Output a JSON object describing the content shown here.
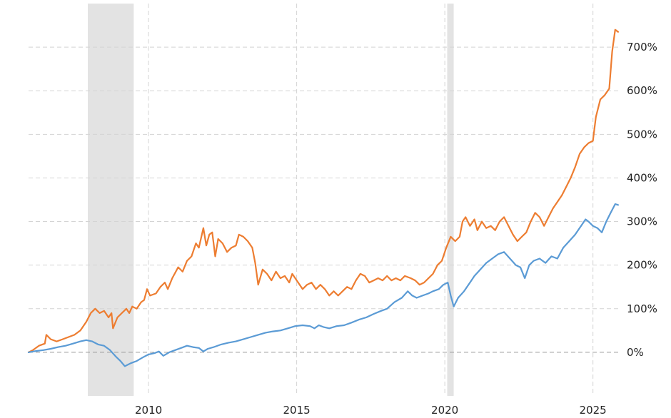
{
  "chart_data": {
    "type": "line",
    "x_unit": "year",
    "xlim": [
      2005.95,
      2025.9
    ],
    "ylim": [
      -100,
      800
    ],
    "x_ticks": [
      {
        "value": 2010,
        "label": "2010"
      },
      {
        "value": 2015,
        "label": "2015"
      },
      {
        "value": 2020,
        "label": "2020"
      },
      {
        "value": 2025,
        "label": "2025"
      }
    ],
    "y_ticks": [
      {
        "value": 0,
        "label": "0%"
      },
      {
        "value": 100,
        "label": "100%"
      },
      {
        "value": 200,
        "label": "200%"
      },
      {
        "value": 300,
        "label": "300%"
      },
      {
        "value": 400,
        "label": "400%"
      },
      {
        "value": 500,
        "label": "500%"
      },
      {
        "value": 600,
        "label": "600%"
      },
      {
        "value": 700,
        "label": "700%"
      }
    ],
    "grid": true,
    "shaded_periods": [
      {
        "start": 2007.95,
        "end": 2009.5
      },
      {
        "start": 2020.08,
        "end": 2020.3
      }
    ],
    "series": [
      {
        "color": "#ed7d31",
        "points": [
          [
            2005.95,
            0
          ],
          [
            2006.1,
            5
          ],
          [
            2006.3,
            15
          ],
          [
            2006.5,
            20
          ],
          [
            2006.55,
            40
          ],
          [
            2006.7,
            30
          ],
          [
            2006.9,
            25
          ],
          [
            2007.1,
            30
          ],
          [
            2007.3,
            35
          ],
          [
            2007.5,
            40
          ],
          [
            2007.7,
            50
          ],
          [
            2007.9,
            70
          ],
          [
            2008.05,
            90
          ],
          [
            2008.2,
            100
          ],
          [
            2008.35,
            90
          ],
          [
            2008.5,
            95
          ],
          [
            2008.65,
            80
          ],
          [
            2008.75,
            90
          ],
          [
            2008.8,
            55
          ],
          [
            2008.95,
            80
          ],
          [
            2009.1,
            90
          ],
          [
            2009.25,
            100
          ],
          [
            2009.35,
            90
          ],
          [
            2009.45,
            105
          ],
          [
            2009.6,
            100
          ],
          [
            2009.75,
            115
          ],
          [
            2009.85,
            120
          ],
          [
            2009.95,
            145
          ],
          [
            2010.05,
            130
          ],
          [
            2010.25,
            135
          ],
          [
            2010.4,
            150
          ],
          [
            2010.55,
            160
          ],
          [
            2010.65,
            145
          ],
          [
            2010.8,
            170
          ],
          [
            2011.0,
            195
          ],
          [
            2011.15,
            185
          ],
          [
            2011.3,
            210
          ],
          [
            2011.45,
            220
          ],
          [
            2011.6,
            250
          ],
          [
            2011.7,
            240
          ],
          [
            2011.85,
            285
          ],
          [
            2011.95,
            245
          ],
          [
            2012.05,
            270
          ],
          [
            2012.15,
            275
          ],
          [
            2012.25,
            220
          ],
          [
            2012.35,
            260
          ],
          [
            2012.5,
            250
          ],
          [
            2012.65,
            230
          ],
          [
            2012.8,
            240
          ],
          [
            2012.95,
            245
          ],
          [
            2013.05,
            270
          ],
          [
            2013.2,
            265
          ],
          [
            2013.35,
            255
          ],
          [
            2013.5,
            240
          ],
          [
            2013.6,
            205
          ],
          [
            2013.7,
            155
          ],
          [
            2013.85,
            190
          ],
          [
            2014.0,
            180
          ],
          [
            2014.15,
            165
          ],
          [
            2014.3,
            185
          ],
          [
            2014.45,
            170
          ],
          [
            2014.6,
            175
          ],
          [
            2014.75,
            160
          ],
          [
            2014.85,
            180
          ],
          [
            2015.05,
            160
          ],
          [
            2015.2,
            145
          ],
          [
            2015.35,
            155
          ],
          [
            2015.5,
            160
          ],
          [
            2015.65,
            145
          ],
          [
            2015.8,
            155
          ],
          [
            2015.95,
            145
          ],
          [
            2016.1,
            130
          ],
          [
            2016.25,
            140
          ],
          [
            2016.4,
            130
          ],
          [
            2016.55,
            140
          ],
          [
            2016.7,
            150
          ],
          [
            2016.85,
            145
          ],
          [
            2017.0,
            165
          ],
          [
            2017.15,
            180
          ],
          [
            2017.3,
            175
          ],
          [
            2017.45,
            160
          ],
          [
            2017.6,
            165
          ],
          [
            2017.75,
            170
          ],
          [
            2017.9,
            165
          ],
          [
            2018.05,
            175
          ],
          [
            2018.2,
            165
          ],
          [
            2018.35,
            170
          ],
          [
            2018.5,
            165
          ],
          [
            2018.65,
            175
          ],
          [
            2018.85,
            170
          ],
          [
            2019.0,
            165
          ],
          [
            2019.15,
            155
          ],
          [
            2019.3,
            160
          ],
          [
            2019.45,
            170
          ],
          [
            2019.6,
            180
          ],
          [
            2019.75,
            200
          ],
          [
            2019.9,
            210
          ],
          [
            2020.05,
            240
          ],
          [
            2020.2,
            265
          ],
          [
            2020.35,
            255
          ],
          [
            2020.5,
            265
          ],
          [
            2020.6,
            300
          ],
          [
            2020.7,
            310
          ],
          [
            2020.85,
            290
          ],
          [
            2021.0,
            305
          ],
          [
            2021.1,
            280
          ],
          [
            2021.25,
            300
          ],
          [
            2021.4,
            285
          ],
          [
            2021.55,
            290
          ],
          [
            2021.7,
            280
          ],
          [
            2021.85,
            300
          ],
          [
            2022.0,
            310
          ],
          [
            2022.15,
            290
          ],
          [
            2022.3,
            270
          ],
          [
            2022.45,
            255
          ],
          [
            2022.6,
            265
          ],
          [
            2022.75,
            275
          ],
          [
            2022.9,
            300
          ],
          [
            2023.05,
            320
          ],
          [
            2023.2,
            310
          ],
          [
            2023.35,
            290
          ],
          [
            2023.5,
            310
          ],
          [
            2023.65,
            330
          ],
          [
            2023.8,
            345
          ],
          [
            2023.95,
            360
          ],
          [
            2024.1,
            380
          ],
          [
            2024.25,
            400
          ],
          [
            2024.4,
            425
          ],
          [
            2024.55,
            455
          ],
          [
            2024.7,
            470
          ],
          [
            2024.85,
            480
          ],
          [
            2025.0,
            485
          ],
          [
            2025.1,
            540
          ],
          [
            2025.25,
            580
          ],
          [
            2025.4,
            590
          ],
          [
            2025.55,
            605
          ],
          [
            2025.65,
            690
          ],
          [
            2025.75,
            740
          ],
          [
            2025.85,
            735
          ]
        ]
      },
      {
        "color": "#5b9bd5",
        "points": [
          [
            2005.95,
            0
          ],
          [
            2006.2,
            3
          ],
          [
            2006.45,
            5
          ],
          [
            2006.7,
            8
          ],
          [
            2006.95,
            12
          ],
          [
            2007.2,
            15
          ],
          [
            2007.45,
            20
          ],
          [
            2007.7,
            25
          ],
          [
            2007.9,
            28
          ],
          [
            2008.1,
            25
          ],
          [
            2008.3,
            18
          ],
          [
            2008.5,
            15
          ],
          [
            2008.7,
            5
          ],
          [
            2008.9,
            -10
          ],
          [
            2009.05,
            -20
          ],
          [
            2009.2,
            -32
          ],
          [
            2009.4,
            -25
          ],
          [
            2009.6,
            -20
          ],
          [
            2009.8,
            -12
          ],
          [
            2010.0,
            -5
          ],
          [
            2010.2,
            -2
          ],
          [
            2010.35,
            2
          ],
          [
            2010.5,
            -8
          ],
          [
            2010.7,
            0
          ],
          [
            2010.9,
            5
          ],
          [
            2011.1,
            10
          ],
          [
            2011.3,
            15
          ],
          [
            2011.5,
            12
          ],
          [
            2011.7,
            10
          ],
          [
            2011.85,
            2
          ],
          [
            2012.0,
            8
          ],
          [
            2012.2,
            12
          ],
          [
            2012.45,
            18
          ],
          [
            2012.7,
            22
          ],
          [
            2012.95,
            25
          ],
          [
            2013.2,
            30
          ],
          [
            2013.45,
            35
          ],
          [
            2013.7,
            40
          ],
          [
            2013.95,
            45
          ],
          [
            2014.2,
            48
          ],
          [
            2014.45,
            50
          ],
          [
            2014.7,
            55
          ],
          [
            2014.95,
            60
          ],
          [
            2015.2,
            62
          ],
          [
            2015.45,
            60
          ],
          [
            2015.6,
            55
          ],
          [
            2015.75,
            62
          ],
          [
            2015.9,
            58
          ],
          [
            2016.1,
            55
          ],
          [
            2016.35,
            60
          ],
          [
            2016.6,
            62
          ],
          [
            2016.85,
            68
          ],
          [
            2017.1,
            75
          ],
          [
            2017.35,
            80
          ],
          [
            2017.6,
            88
          ],
          [
            2017.85,
            95
          ],
          [
            2018.05,
            100
          ],
          [
            2018.3,
            115
          ],
          [
            2018.55,
            125
          ],
          [
            2018.75,
            140
          ],
          [
            2018.9,
            130
          ],
          [
            2019.05,
            125
          ],
          [
            2019.25,
            130
          ],
          [
            2019.45,
            135
          ],
          [
            2019.6,
            140
          ],
          [
            2019.8,
            145
          ],
          [
            2019.95,
            155
          ],
          [
            2020.1,
            160
          ],
          [
            2020.2,
            130
          ],
          [
            2020.3,
            105
          ],
          [
            2020.45,
            125
          ],
          [
            2020.65,
            140
          ],
          [
            2020.85,
            160
          ],
          [
            2021.0,
            175
          ],
          [
            2021.2,
            190
          ],
          [
            2021.4,
            205
          ],
          [
            2021.6,
            215
          ],
          [
            2021.8,
            225
          ],
          [
            2022.0,
            230
          ],
          [
            2022.2,
            215
          ],
          [
            2022.4,
            200
          ],
          [
            2022.55,
            195
          ],
          [
            2022.7,
            170
          ],
          [
            2022.85,
            200
          ],
          [
            2023.0,
            210
          ],
          [
            2023.2,
            215
          ],
          [
            2023.4,
            205
          ],
          [
            2023.6,
            220
          ],
          [
            2023.8,
            215
          ],
          [
            2024.0,
            240
          ],
          [
            2024.2,
            255
          ],
          [
            2024.4,
            270
          ],
          [
            2024.6,
            290
          ],
          [
            2024.75,
            305
          ],
          [
            2024.85,
            300
          ],
          [
            2025.0,
            290
          ],
          [
            2025.15,
            285
          ],
          [
            2025.3,
            275
          ],
          [
            2025.45,
            300
          ],
          [
            2025.6,
            320
          ],
          [
            2025.75,
            340
          ],
          [
            2025.85,
            338
          ]
        ]
      }
    ]
  }
}
